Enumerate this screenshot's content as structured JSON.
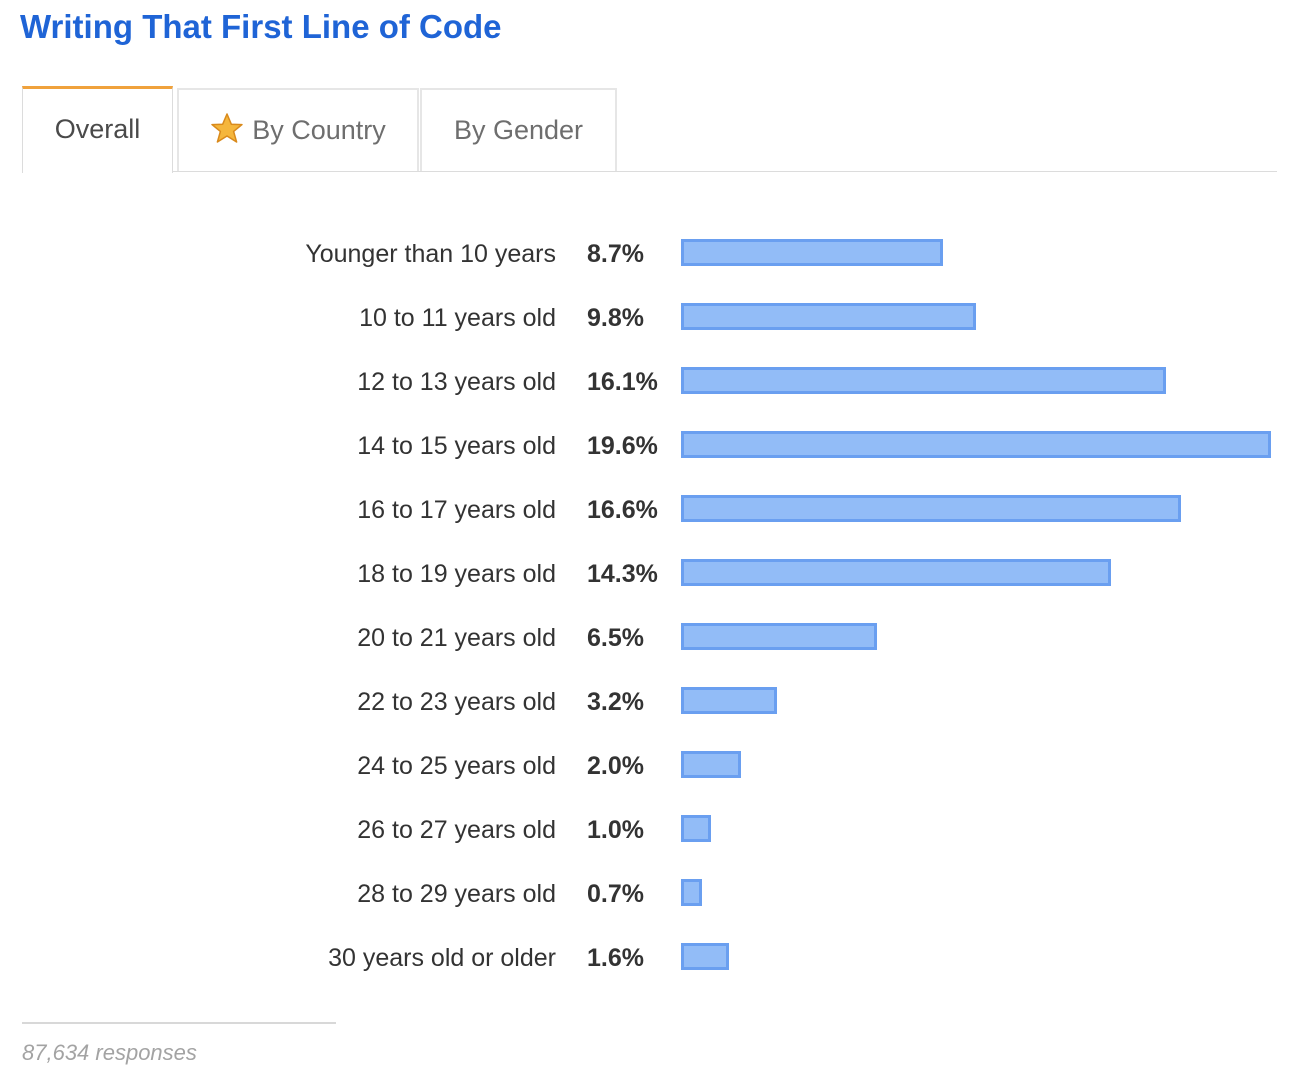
{
  "title": "Writing That First Line of Code",
  "tabs": [
    {
      "label": "Overall",
      "active": true
    },
    {
      "label": "By Country",
      "active": false,
      "icon": "star-icon"
    },
    {
      "label": "By Gender",
      "active": false
    }
  ],
  "footer": {
    "responses_text": "87,634 responses"
  },
  "colors": {
    "title": "#1f64d6",
    "active_tab_accent": "#f0a23c",
    "bar_fill": "#92bcf7",
    "bar_border": "#6a9ff0"
  },
  "chart_data": {
    "type": "bar",
    "orientation": "horizontal",
    "categories": [
      "Younger than 10 years",
      "10 to 11 years old",
      "12 to 13 years old",
      "14 to 15 years old",
      "16 to 17 years old",
      "18 to 19 years old",
      "20 to 21 years old",
      "22 to 23 years old",
      "24 to 25 years old",
      "26 to 27 years old",
      "28 to 29 years old",
      "30 years old or older"
    ],
    "values": [
      8.7,
      9.8,
      16.1,
      19.6,
      16.6,
      14.3,
      6.5,
      3.2,
      2.0,
      1.0,
      0.7,
      1.6
    ],
    "value_labels": [
      "8.7%",
      "9.8%",
      "16.1%",
      "19.6%",
      "16.6%",
      "14.3%",
      "6.5%",
      "3.2%",
      "2.0%",
      "1.0%",
      "0.7%",
      "1.6%"
    ],
    "unit": "%",
    "xlim": [
      0,
      19.6
    ],
    "grid": false
  }
}
